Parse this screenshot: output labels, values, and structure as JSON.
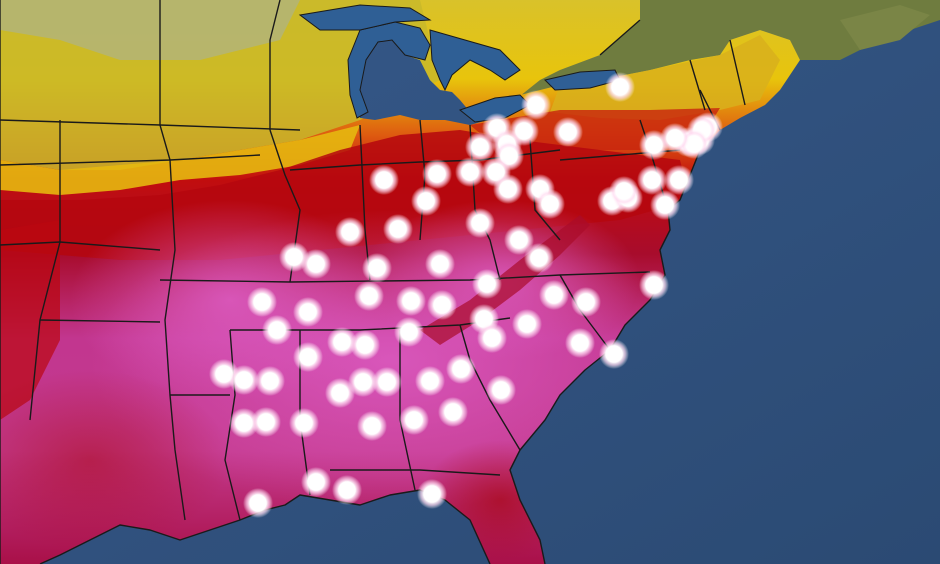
{
  "colors": {
    "ocean": "#3f6795",
    "ocean_deep": "#2c4d77",
    "canada_land": "#6b7a3e",
    "lake": "#2f5f95",
    "cool": "#c9b826",
    "warm_yellow": "#e7c20f",
    "orange": "#d94a12",
    "red": "#b8070f",
    "deep_red": "#95061a",
    "magenta": "#b72a7a",
    "pink": "#cf4fb0",
    "border": "#1a1a1a",
    "marker": "#ffffff"
  },
  "marker_count": 86
}
